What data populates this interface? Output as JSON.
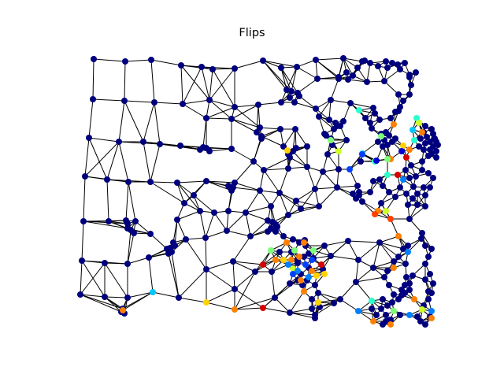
{
  "figure": {
    "title": "Flips",
    "node_color_scale": "jet",
    "edge_color": "#000000",
    "background": "#ffffff"
  },
  "palette": {
    "0": "#00007f",
    "1": "#0000d5",
    "2": "#0040ff",
    "3": "#0080ff",
    "4": "#00c8ff",
    "5": "#28ffce",
    "6": "#7cff79",
    "7": "#ceff28",
    "8": "#ffd200",
    "9": "#ff8000",
    "10": "#ff4000",
    "11": "#d50000",
    "12": "#7f0000"
  }
}
